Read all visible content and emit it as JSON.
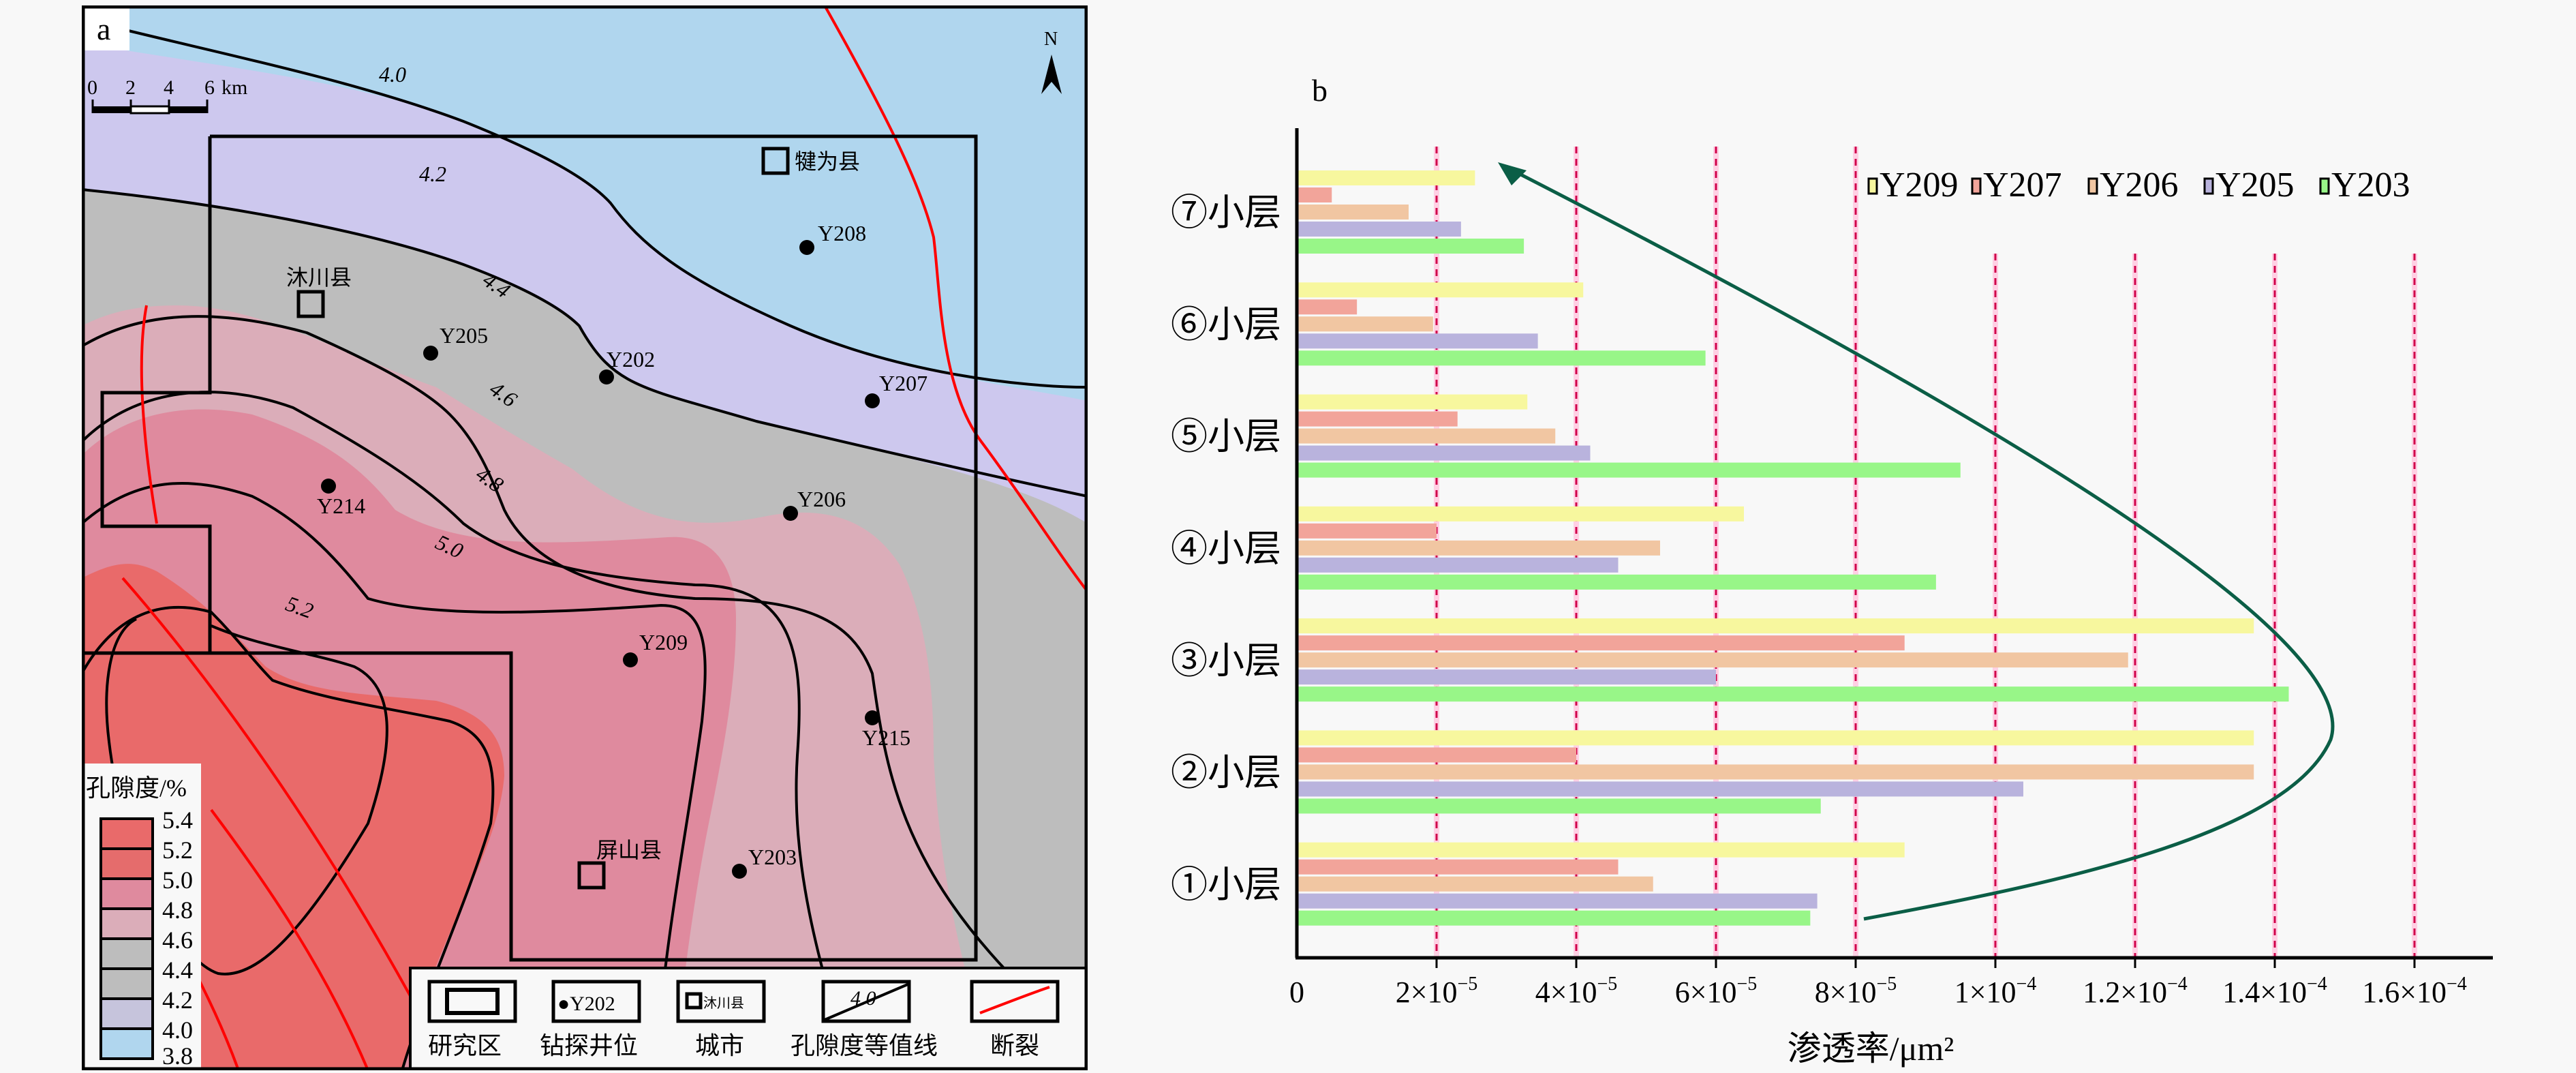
{
  "panel_a": {
    "label": "a",
    "scale_bar": {
      "ticks": [
        "0",
        "2",
        "4",
        "6"
      ],
      "unit": "km"
    },
    "north_label": "N",
    "contour_labels": [
      "4.0",
      "4.2",
      "4.4",
      "4.6",
      "4.8",
      "5.0",
      "5.2"
    ],
    "wells": [
      "Y208",
      "Y205",
      "Y202",
      "Y207",
      "Y214",
      "Y206",
      "Y209",
      "Y215",
      "Y203"
    ],
    "cities": [
      "犍为县",
      "沐川县",
      "屏山县"
    ],
    "porosity_legend": {
      "title": "孔隙度/%",
      "breaks": [
        "5.4",
        "5.2",
        "5.0",
        "4.8",
        "4.6",
        "4.4",
        "4.2",
        "4.0",
        "3.8"
      ],
      "colors": [
        "#e96a6a",
        "#e56c6c",
        "#df8a9e",
        "#dbadb9",
        "#bdbdbd",
        "#bdbdbd",
        "#c6c4dc",
        "#b0d6ee"
      ]
    },
    "symbol_legend": [
      {
        "label": "研究区",
        "symbol": "study-area-box"
      },
      {
        "label": "钻探井位",
        "symbol": "well-dot",
        "sample": "●Y202"
      },
      {
        "label": "城市",
        "symbol": "city-square",
        "sample": "沐川县"
      },
      {
        "label": "孔隙度等值线",
        "symbol": "contour-line",
        "sample": "4.0"
      },
      {
        "label": "断裂",
        "symbol": "fault-line"
      }
    ],
    "colors": {
      "contour": "#000000",
      "fault": "#ff0000"
    }
  },
  "chart_data": {
    "type": "bar",
    "orientation": "horizontal",
    "panel_label": "b",
    "title": "",
    "xlabel": "渗透率/μm²",
    "ylabel": "",
    "categories": [
      "①小层",
      "②小层",
      "③小层",
      "④小层",
      "⑤小层",
      "⑥小层",
      "⑦小层"
    ],
    "series": [
      {
        "name": "Y209",
        "color": "#f7f79e",
        "values": [
          8.7e-05,
          0.000137,
          0.000137,
          6.4e-05,
          3.3e-05,
          4.1e-05,
          2.55e-05
        ]
      },
      {
        "name": "Y207",
        "color": "#f2a49a",
        "values": [
          4.6e-05,
          4e-05,
          8.7e-05,
          2e-05,
          2.3e-05,
          8.6e-06,
          5e-06
        ]
      },
      {
        "name": "Y206",
        "color": "#f1c6a2",
        "values": [
          5.1e-05,
          0.000137,
          0.000119,
          5.2e-05,
          3.7e-05,
          1.95e-05,
          1.6e-05
        ]
      },
      {
        "name": "Y205",
        "color": "#b9b3dd",
        "values": [
          7.45e-05,
          0.000104,
          6e-05,
          4.6e-05,
          4.2e-05,
          3.45e-05,
          2.35e-05
        ]
      },
      {
        "name": "Y203",
        "color": "#98f688",
        "values": [
          7.35e-05,
          7.5e-05,
          0.000142,
          9.15e-05,
          9.5e-05,
          5.85e-05,
          3.25e-05
        ]
      }
    ],
    "xlim": [
      0,
      0.00017
    ],
    "xticks": [
      0,
      2e-05,
      4e-05,
      6e-05,
      8e-05,
      0.0001,
      0.00012,
      0.00014,
      0.00016
    ],
    "xtick_labels": [
      {
        "m": "0",
        "e": ""
      },
      {
        "m": "2×10",
        "e": "−5"
      },
      {
        "m": "4×10",
        "e": "−5"
      },
      {
        "m": "6×10",
        "e": "−5"
      },
      {
        "m": "8×10",
        "e": "−5"
      },
      {
        "m": "1×10",
        "e": "−4"
      },
      {
        "m": "1.2×10",
        "e": "−4"
      },
      {
        "m": "1.4×10",
        "e": "−4"
      },
      {
        "m": "1.6×10",
        "e": "−4"
      }
    ],
    "grid": {
      "vertical": true,
      "style": "dashed",
      "color": "#d0004a"
    },
    "legend": {
      "position": "top-right",
      "entries": [
        "Y209",
        "Y207",
        "Y206",
        "Y205",
        "Y203"
      ]
    },
    "annotation": {
      "type": "curved-arrow",
      "color": "#0b5e46",
      "from_category": "①小层",
      "to_category": "⑦小层"
    }
  }
}
